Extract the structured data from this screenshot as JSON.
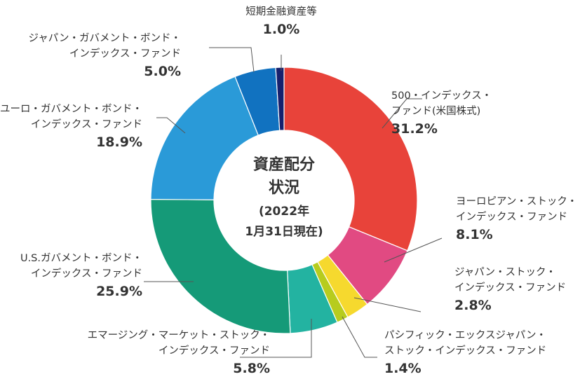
{
  "chart_data": {
    "type": "pie",
    "center_title": [
      "資産配分",
      "状況"
    ],
    "center_subtitle": [
      "(2022年",
      "1月31日現在)"
    ],
    "categories": [
      "500・インデックス・ファンド(米国株式)",
      "ヨーロピアン・ストック・インデックス・ファンド",
      "ジャパン・ストック・インデックス・ファンド",
      "パシフィック・エックスジャパン・ストック・インデックス・ファンド",
      "エマージング・マーケット・ストック・インデックス・ファンド",
      "U.S.ガバメント・ボンド・インデックス・ファンド",
      "ユーロ・ガバメント・ボンド・インデックス・ファンド",
      "ジャパン・ガバメント・ボンド・インデックス・ファンド",
      "短期金融資産等"
    ],
    "values": [
      31.2,
      8.1,
      2.8,
      1.4,
      5.8,
      25.9,
      18.9,
      5.0,
      1.0
    ],
    "colors": [
      "#e8433a",
      "#e14a82",
      "#f6d92e",
      "#b7cc1e",
      "#23b3a1",
      "#159a78",
      "#2a9ad8",
      "#1172c0",
      "#17206d"
    ],
    "labels": [
      {
        "lines": [
          "500・インデックス・",
          "ファンド(米国株式)"
        ],
        "pct": "31.2%"
      },
      {
        "lines": [
          "ヨーロピアン・ストック・",
          "インデックス・ファンド"
        ],
        "pct": "8.1%"
      },
      {
        "lines": [
          "ジャパン・ストック・",
          "インデックス・ファンド"
        ],
        "pct": "2.8%"
      },
      {
        "lines": [
          "パシフィック・エックスジャパン・",
          "ストック・インデックス・ファンド"
        ],
        "pct": "1.4%"
      },
      {
        "lines": [
          "エマージング・マーケット・ストック・",
          "インデックス・ファンド"
        ],
        "pct": "5.8%"
      },
      {
        "lines": [
          "U.S.ガバメント・ボンド・",
          "インデックス・ファンド"
        ],
        "pct": "25.9%"
      },
      {
        "lines": [
          "ユーロ・ガバメント・ボンド・",
          "インデックス・ファンド"
        ],
        "pct": "18.9%"
      },
      {
        "lines": [
          "ジャパン・ガバメント・ボンド・",
          "インデックス・ファンド"
        ],
        "pct": "5.0%"
      },
      {
        "lines": [
          "短期金融資産等"
        ],
        "pct": "1.0%"
      }
    ]
  }
}
